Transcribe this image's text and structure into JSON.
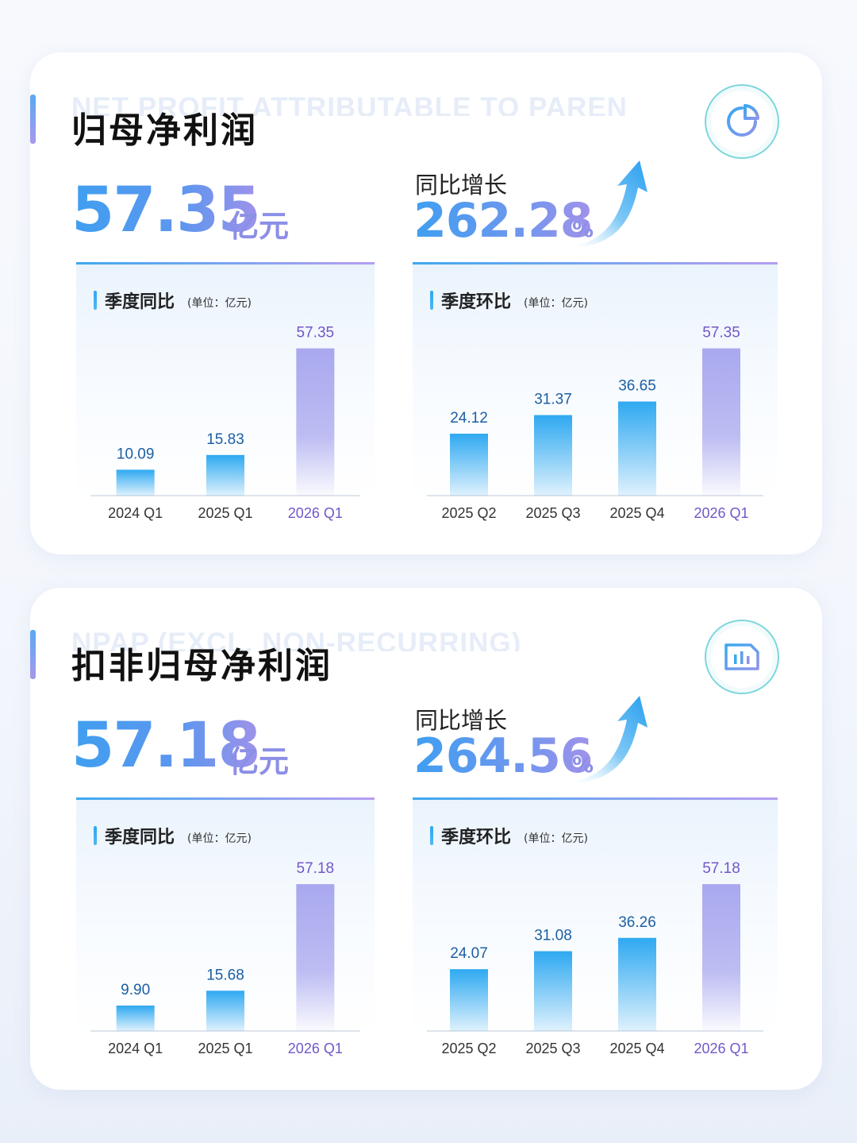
{
  "cards": [
    {
      "ghost_title": "NET PROFIT ATTRIBUTABLE TO PARENT",
      "title": "归母净利润",
      "icon": "pie-chart-icon",
      "value": "57.35",
      "value_unit": "亿元",
      "yoy_label": "同比增长",
      "yoy_value": "262.28",
      "yoy_unit": "%"
    },
    {
      "ghost_title": "NPAP (EXCL. NON-RECURRING)",
      "title": "扣非归母净利润",
      "icon": "bar-chart-icon",
      "value": "57.18",
      "value_unit": "亿元",
      "yoy_label": "同比增长",
      "yoy_value": "264.56",
      "yoy_unit": "%"
    }
  ],
  "chart_data": [
    {
      "type": "bar",
      "title": "季度同比",
      "unit_note": "(单位：亿元)",
      "categories": [
        "2024 Q1",
        "2025 Q1",
        "2026 Q1"
      ],
      "values": [
        10.09,
        15.83,
        57.35
      ],
      "value_labels": [
        "10.09",
        "15.83",
        "57.35"
      ],
      "highlight_last": true,
      "ylim": [
        0,
        60
      ]
    },
    {
      "type": "bar",
      "title": "季度环比",
      "unit_note": "(单位：亿元)",
      "categories": [
        "2025 Q2",
        "2025 Q3",
        "2025 Q4",
        "2026 Q1"
      ],
      "values": [
        24.12,
        31.37,
        36.65,
        57.35
      ],
      "value_labels": [
        "24.12",
        "31.37",
        "36.65",
        "57.35"
      ],
      "highlight_last": true,
      "ylim": [
        0,
        60
      ]
    },
    {
      "type": "bar",
      "title": "季度同比",
      "unit_note": "(单位：亿元)",
      "categories": [
        "2024 Q1",
        "2025 Q1",
        "2026 Q1"
      ],
      "values": [
        9.9,
        15.68,
        57.18
      ],
      "value_labels": [
        "9.90",
        "15.68",
        "57.18"
      ],
      "highlight_last": true,
      "ylim": [
        0,
        60
      ]
    },
    {
      "type": "bar",
      "title": "季度环比",
      "unit_note": "(单位：亿元)",
      "categories": [
        "2025 Q2",
        "2025 Q3",
        "2025 Q4",
        "2026 Q1"
      ],
      "values": [
        24.07,
        31.08,
        36.26,
        57.18
      ],
      "value_labels": [
        "24.07",
        "31.08",
        "36.26",
        "57.18"
      ],
      "highlight_last": true,
      "ylim": [
        0,
        60
      ]
    }
  ],
  "colors": {
    "bar_blue": "#2fa9f1",
    "bar_highlight": "#a9a8ef",
    "value_label": "#1c5fa3",
    "highlight_label": "#7257c8",
    "axis_text": "#333333"
  }
}
